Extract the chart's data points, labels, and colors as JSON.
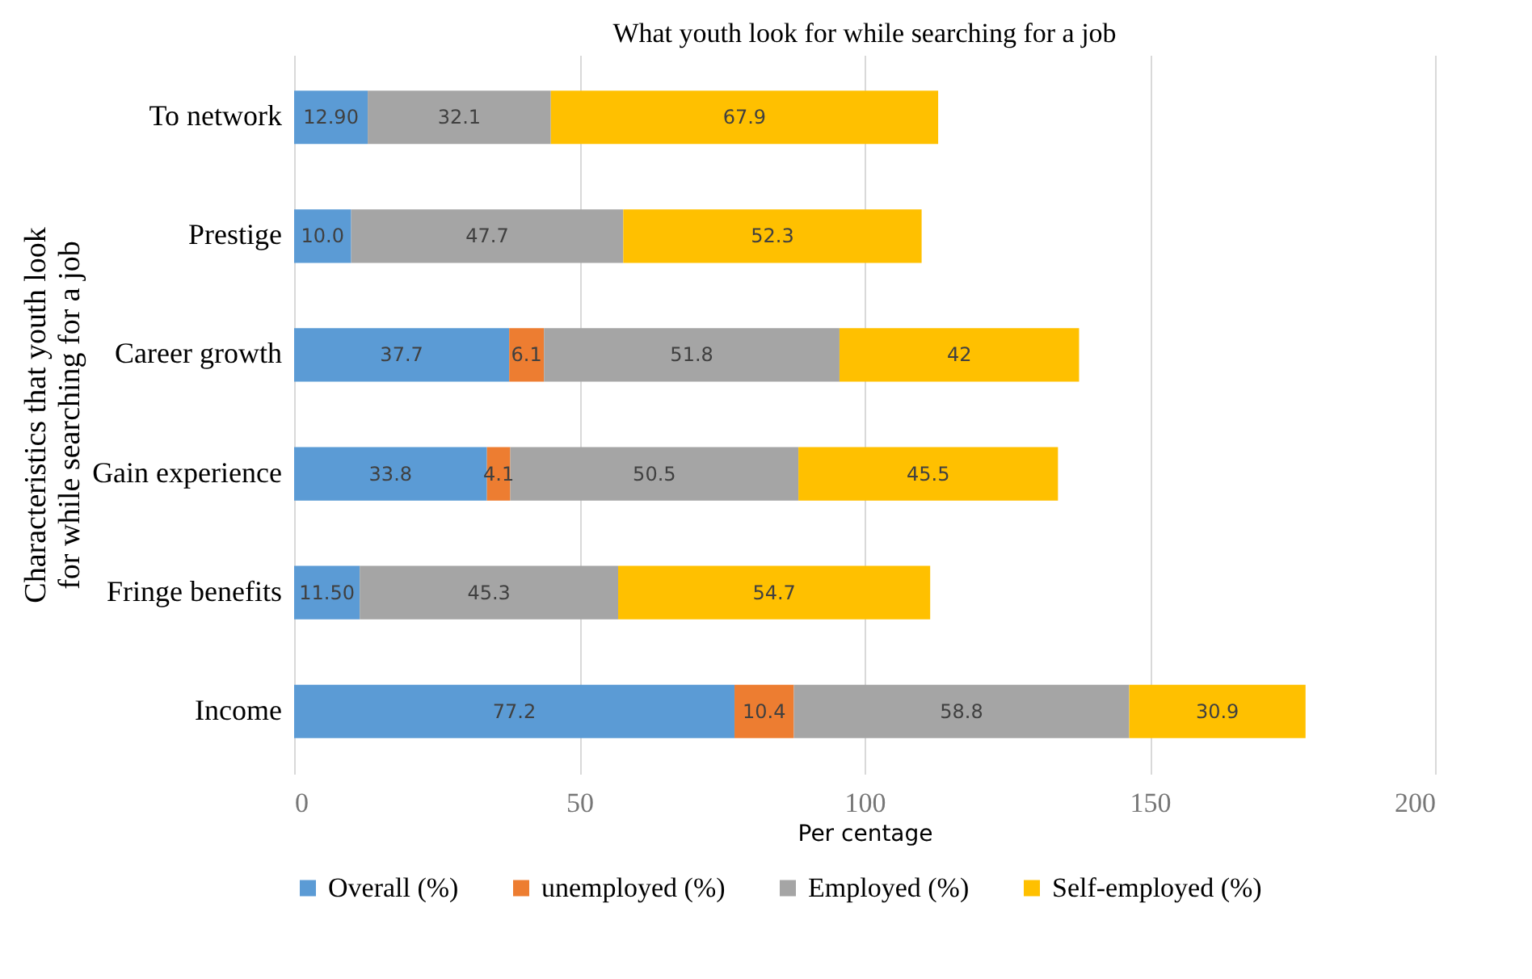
{
  "chart_data": {
    "type": "bar",
    "orientation": "horizontal",
    "stacked": true,
    "title": "What youth  look for while searching for a job",
    "xlabel": "Per centage",
    "ylabel": "Characteristics that youth look for while searching for a job",
    "categories": [
      "To network",
      "Prestige",
      "Career growth",
      "Gain experience",
      "Fringe benefits",
      "Income"
    ],
    "series": [
      {
        "name": "Overall (%)",
        "color": "#5b9bd5",
        "values": [
          12.9,
          10.0,
          37.7,
          33.8,
          11.5,
          77.2
        ],
        "value_labels": [
          "12.90",
          "10.0",
          "37.7",
          "33.8",
          "11.50",
          "77.2"
        ]
      },
      {
        "name": "unemployed (%)",
        "color": "#ed7d31",
        "values": [
          null,
          null,
          6.1,
          4.1,
          null,
          10.4
        ],
        "value_labels": [
          null,
          null,
          "6.1",
          "4.1",
          null,
          "10.4"
        ]
      },
      {
        "name": "Employed (%)",
        "color": "#a5a5a5",
        "values": [
          32.1,
          47.7,
          51.8,
          50.5,
          45.3,
          58.8
        ],
        "value_labels": [
          "32.1",
          "47.7",
          "51.8",
          "50.5",
          "45.3",
          "58.8"
        ]
      },
      {
        "name": "Self-employed (%)",
        "color": "#ffc000",
        "values": [
          67.9,
          52.3,
          42,
          45.5,
          54.7,
          30.9
        ],
        "value_labels": [
          "67.9",
          "52.3",
          "42",
          "45.5",
          "54.7",
          "30.9"
        ]
      }
    ],
    "xlim": [
      0,
      200
    ],
    "xticks": [
      0,
      50,
      100,
      150,
      200
    ],
    "grid": "x",
    "legend": "bottom"
  }
}
